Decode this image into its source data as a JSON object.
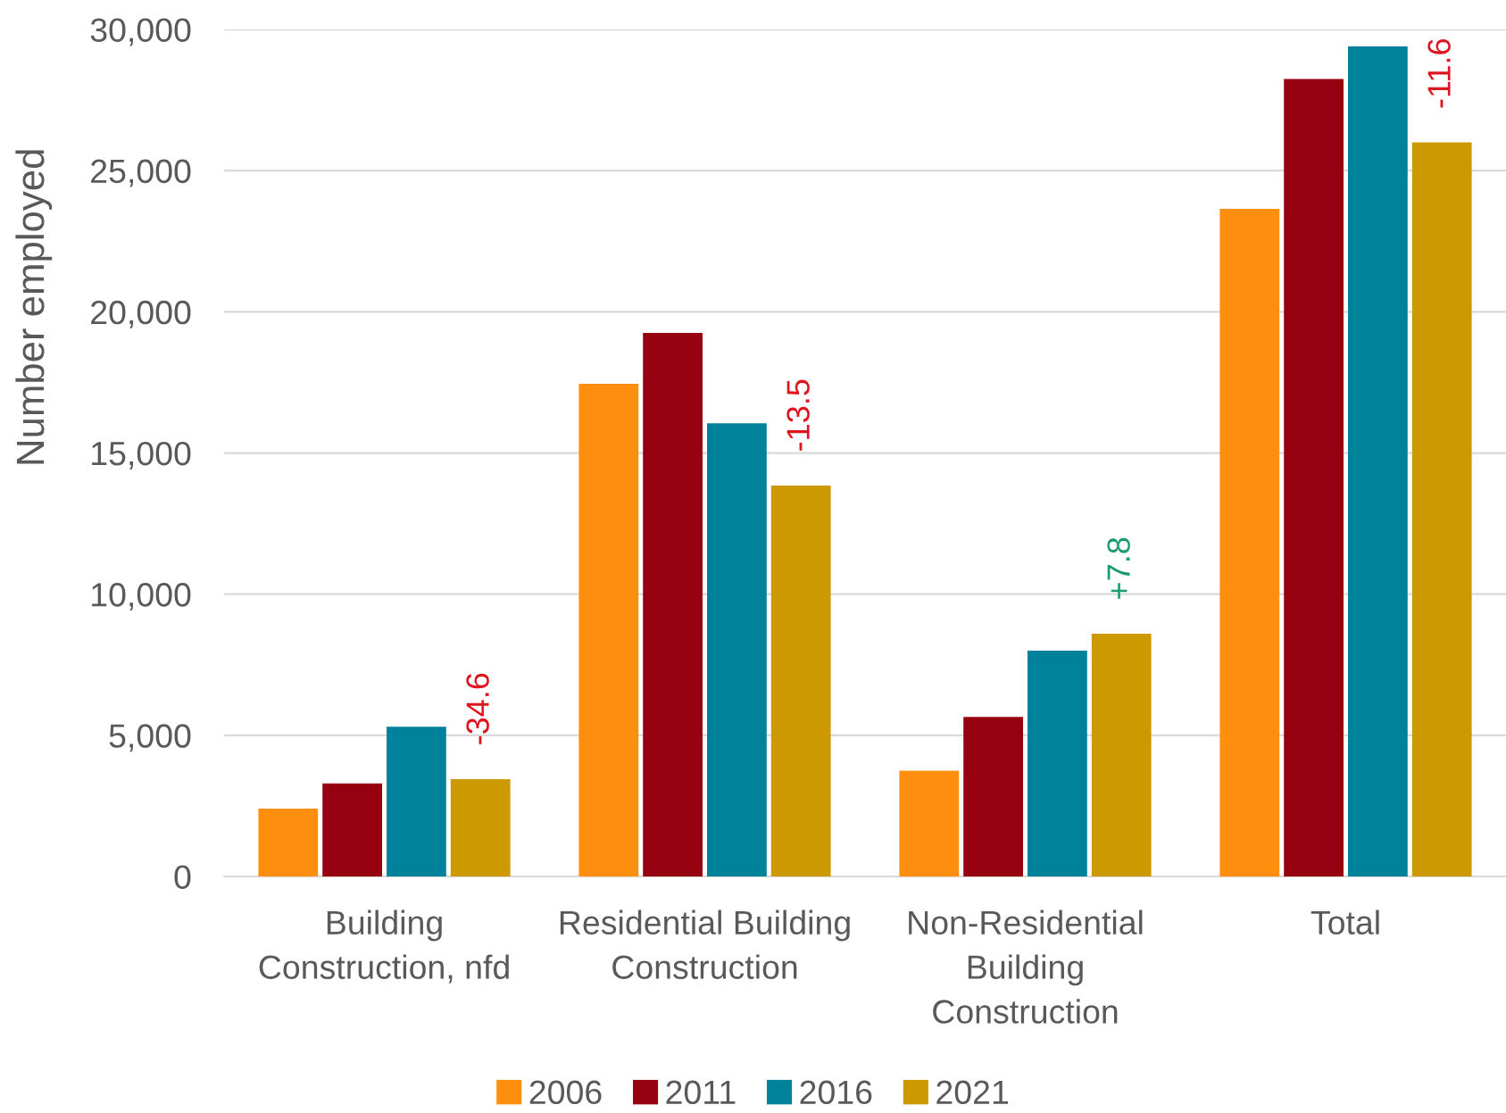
{
  "chart_data": {
    "type": "bar",
    "ylabel": "Number employed",
    "categories": [
      "Building\nConstruction, nfd",
      "Residential Building\nConstruction",
      "Non-Residential\nBuilding\nConstruction",
      "Total"
    ],
    "series": [
      {
        "name": "2006",
        "color": "#fe8f0e",
        "values": [
          2400,
          17450,
          3750,
          23650
        ]
      },
      {
        "name": "2011",
        "color": "#960010",
        "values": [
          3300,
          19250,
          5650,
          28250
        ]
      },
      {
        "name": "2016",
        "color": "#00829b",
        "values": [
          5300,
          16050,
          8000,
          29400
        ]
      },
      {
        "name": "2021",
        "color": "#cc9a00",
        "values": [
          3450,
          13850,
          8600,
          26000
        ]
      }
    ],
    "annotations": [
      {
        "text": "-34.6",
        "x": "Building\nConstruction, nfd",
        "y": 3450
      },
      {
        "text": "-13.5",
        "x": "Residential Building\nConstruction",
        "y": 13850
      },
      "+7.8",
      {
        "text": "-11.6",
        "x": "Total",
        "y": 26000
      }
    ],
    "ylim": [
      0,
      30000
    ],
    "yticks": [
      {
        "value": 0,
        "label": "0"
      },
      {
        "value": 5000,
        "label": "5,000"
      },
      {
        "value": 10000,
        "label": "10,000"
      },
      {
        "value": 15000,
        "label": "15,000"
      },
      {
        "value": 20000,
        "label": "20,000"
      },
      {
        "value": 25000,
        "label": "25,000"
      },
      {
        "value": 30000,
        "label": "30,000"
      }
    ],
    "grid": "y",
    "legend": "bottom"
  }
}
